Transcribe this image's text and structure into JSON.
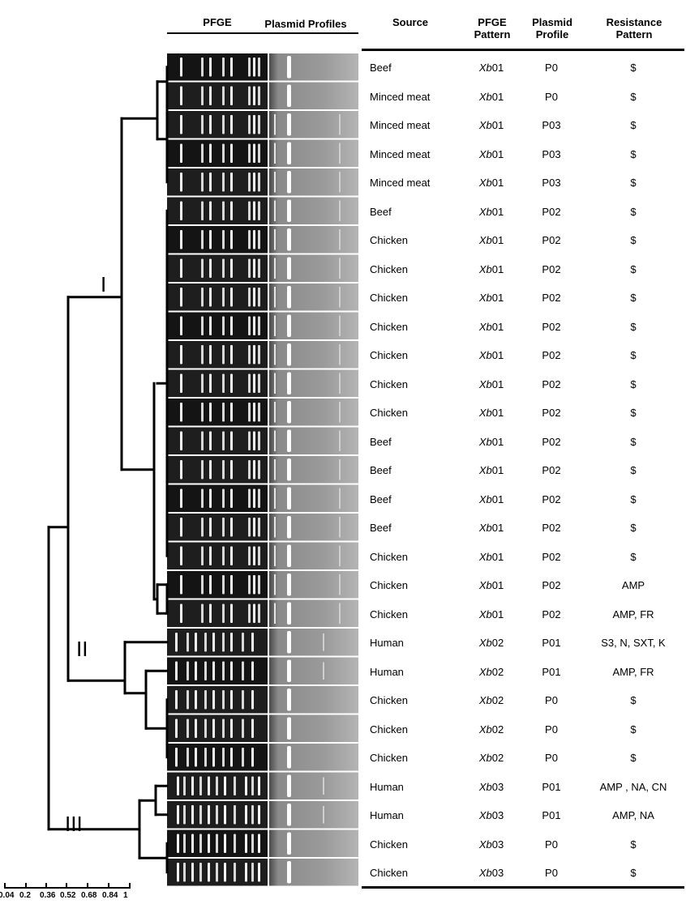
{
  "gel_headers": {
    "pfge": "PFGE",
    "plasmid": "Plasmid Profiles"
  },
  "table_headers": {
    "source": "Source",
    "pfge_pattern": "PFGE\nPattern",
    "plasmid_profile": "Plasmid\nProfile",
    "resistance_pattern": "Resistance\nPattern"
  },
  "rows": [
    {
      "source": "Beef",
      "pfge_prefix": "Xb",
      "pfge_num": "01",
      "plasmid": "P0",
      "resistance": "$"
    },
    {
      "source": "Minced meat",
      "pfge_prefix": "Xb",
      "pfge_num": "01",
      "plasmid": "P0",
      "resistance": "$"
    },
    {
      "source": "Minced meat",
      "pfge_prefix": "Xb",
      "pfge_num": "01",
      "plasmid": "P03",
      "resistance": "$"
    },
    {
      "source": "Minced meat",
      "pfge_prefix": "Xb",
      "pfge_num": "01",
      "plasmid": "P03",
      "resistance": "$"
    },
    {
      "source": "Minced meat",
      "pfge_prefix": "Xb",
      "pfge_num": "01",
      "plasmid": "P03",
      "resistance": "$"
    },
    {
      "source": "Beef",
      "pfge_prefix": "Xb",
      "pfge_num": "01",
      "plasmid": "P02",
      "resistance": "$"
    },
    {
      "source": "Chicken",
      "pfge_prefix": "Xb",
      "pfge_num": "01",
      "plasmid": "P02",
      "resistance": "$"
    },
    {
      "source": "Chicken",
      "pfge_prefix": "Xb",
      "pfge_num": "01",
      "plasmid": "P02",
      "resistance": "$"
    },
    {
      "source": "Chicken",
      "pfge_prefix": "Xb",
      "pfge_num": "01",
      "plasmid": "P02",
      "resistance": "$"
    },
    {
      "source": "Chicken",
      "pfge_prefix": "Xb",
      "pfge_num": "01",
      "plasmid": "P02",
      "resistance": "$"
    },
    {
      "source": "Chicken",
      "pfge_prefix": "Xb",
      "pfge_num": "01",
      "plasmid": "P02",
      "resistance": "$"
    },
    {
      "source": "Chicken",
      "pfge_prefix": "Xb",
      "pfge_num": "01",
      "plasmid": "P02",
      "resistance": "$"
    },
    {
      "source": "Chicken",
      "pfge_prefix": "Xb",
      "pfge_num": "01",
      "plasmid": "P02",
      "resistance": "$"
    },
    {
      "source": "Beef",
      "pfge_prefix": "Xb",
      "pfge_num": "01",
      "plasmid": "P02",
      "resistance": "$"
    },
    {
      "source": "Beef",
      "pfge_prefix": "Xb",
      "pfge_num": "01",
      "plasmid": "P02",
      "resistance": "$"
    },
    {
      "source": "Beef",
      "pfge_prefix": "Xb",
      "pfge_num": "01",
      "plasmid": "P02",
      "resistance": "$"
    },
    {
      "source": "Beef",
      "pfge_prefix": "Xb",
      "pfge_num": "01",
      "plasmid": "P02",
      "resistance": "$"
    },
    {
      "source": "Chicken",
      "pfge_prefix": "Xb",
      "pfge_num": "01",
      "plasmid": "P02",
      "resistance": "$"
    },
    {
      "source": "Chicken",
      "pfge_prefix": "Xb",
      "pfge_num": "01",
      "plasmid": "P02",
      "resistance": "AMP"
    },
    {
      "source": "Chicken",
      "pfge_prefix": "Xb",
      "pfge_num": "01",
      "plasmid": "P02",
      "resistance": "AMP, FR"
    },
    {
      "source": "Human",
      "pfge_prefix": "Xb",
      "pfge_num": "02",
      "plasmid": "P01",
      "resistance": "S3, N, SXT, K"
    },
    {
      "source": "Human",
      "pfge_prefix": "Xb",
      "pfge_num": "02",
      "plasmid": "P01",
      "resistance": "AMP, FR"
    },
    {
      "source": "Chicken",
      "pfge_prefix": "Xb",
      "pfge_num": "02",
      "plasmid": "P0",
      "resistance": "$"
    },
    {
      "source": "Chicken",
      "pfge_prefix": "Xb",
      "pfge_num": "02",
      "plasmid": "P0",
      "resistance": "$"
    },
    {
      "source": "Chicken",
      "pfge_prefix": "Xb",
      "pfge_num": "02",
      "plasmid": "P0",
      "resistance": "$"
    },
    {
      "source": "Human",
      "pfge_prefix": "Xb",
      "pfge_num": "03",
      "plasmid": "P01",
      "resistance": "AMP , NA, CN"
    },
    {
      "source": "Human",
      "pfge_prefix": "Xb",
      "pfge_num": "03",
      "plasmid": "P01",
      "resistance": "AMP, NA"
    },
    {
      "source": "Chicken",
      "pfge_prefix": "Xb",
      "pfge_num": "03",
      "plasmid": "P0",
      "resistance": "$"
    },
    {
      "source": "Chicken",
      "pfge_prefix": "Xb",
      "pfge_num": "03",
      "plasmid": "P0",
      "resistance": "$"
    }
  ],
  "clusters": [
    {
      "label": "I"
    },
    {
      "label": "II"
    },
    {
      "label": "III"
    }
  ],
  "scale": {
    "ticks": [
      "0.04",
      "0.2",
      "0.36",
      "0.52",
      "0.68",
      "0.84",
      "1"
    ]
  }
}
